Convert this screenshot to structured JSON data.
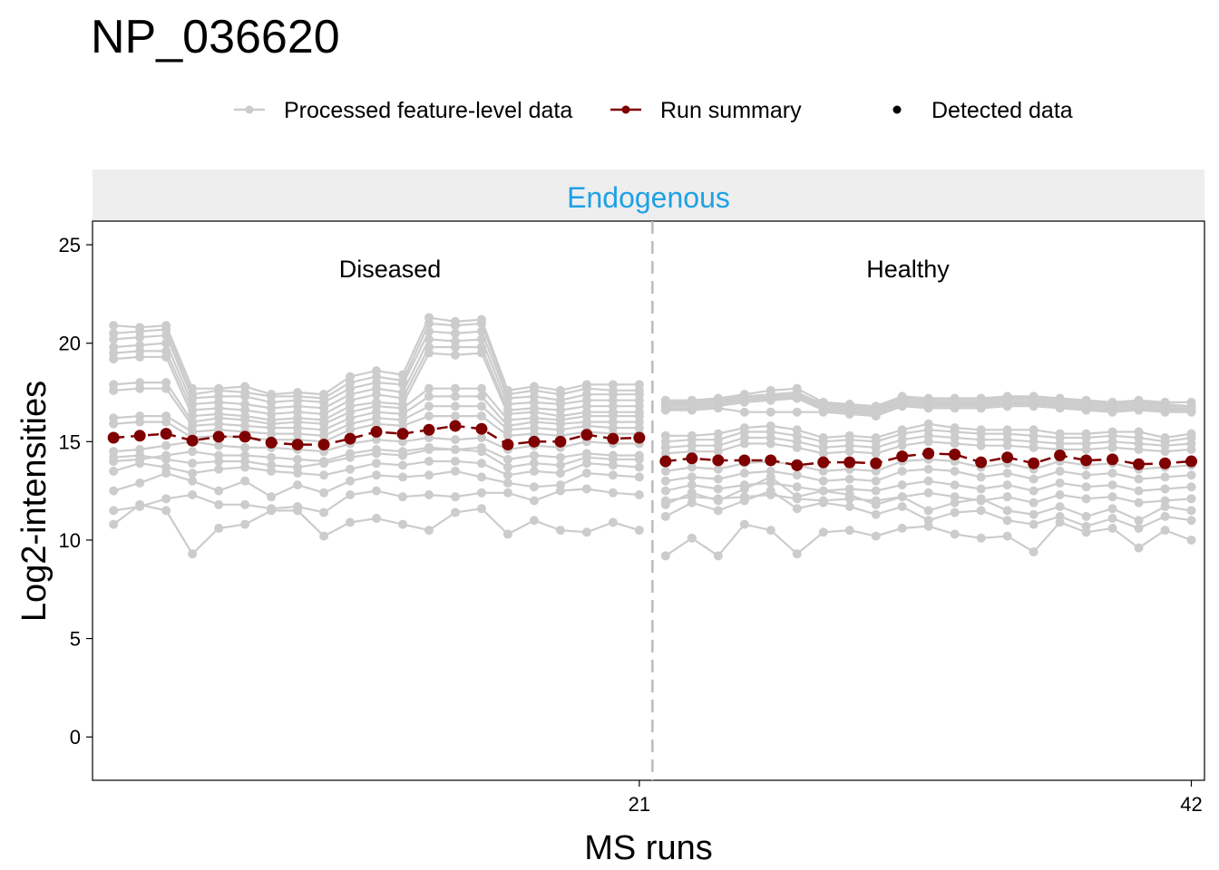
{
  "colors": {
    "feature_line": "#cccccc",
    "run_summary": "#7f0000",
    "strip_bg": "#eeeeee",
    "strip_text": "#1ea1e6",
    "divider": "#bbbbbb"
  },
  "chart_data": {
    "type": "line",
    "title": "NP_036620",
    "xlabel": "MS runs",
    "ylabel": "Log2-intensities",
    "facet_label": "Endogenous",
    "group_labels": [
      "Diseased",
      "Healthy"
    ],
    "xlim": [
      0.2,
      42.5
    ],
    "ylim": [
      -2.2,
      26.2
    ],
    "x_ticks": [
      21,
      42
    ],
    "y_ticks": [
      0,
      5,
      10,
      15,
      20,
      25
    ],
    "group_boundary": 21.5,
    "grid": false,
    "legend_position": "top",
    "legend": [
      {
        "label": "Processed feature-level data",
        "symbol": "line-point"
      },
      {
        "label": "Run summary",
        "symbol": "line-point"
      },
      {
        "label": "Detected data",
        "symbol": "point"
      }
    ],
    "run_summary": {
      "name": "Run summary",
      "x": [
        1,
        2,
        3,
        4,
        5,
        6,
        7,
        8,
        9,
        10,
        11,
        12,
        13,
        14,
        15,
        16,
        17,
        18,
        19,
        20,
        21,
        22,
        23,
        24,
        25,
        26,
        27,
        28,
        29,
        30,
        31,
        32,
        33,
        34,
        35,
        36,
        37,
        38,
        39,
        40,
        41,
        42
      ],
      "y": [
        15.2,
        15.3,
        15.4,
        15.05,
        15.25,
        15.25,
        14.95,
        14.85,
        14.85,
        15.15,
        15.5,
        15.4,
        15.6,
        15.8,
        15.65,
        14.85,
        15.0,
        15.0,
        15.35,
        15.15,
        15.2,
        14.0,
        14.15,
        14.05,
        14.05,
        14.05,
        13.8,
        13.95,
        13.95,
        13.9,
        14.25,
        14.4,
        14.35,
        13.95,
        14.2,
        13.9,
        14.3,
        14.05,
        14.1,
        13.85,
        13.9,
        14.0
      ]
    },
    "feature_series": [
      {
        "values": [
          20.9,
          20.8,
          20.9,
          17.7,
          17.7,
          17.8,
          17.4,
          17.5,
          17.4,
          18.3,
          18.6,
          18.4,
          21.3,
          21.1,
          21.2,
          17.6,
          17.8,
          17.6,
          17.9,
          17.9,
          17.9,
          17.1,
          17.1,
          17.2,
          17.4,
          17.6,
          17.7,
          17.0,
          16.9,
          16.8,
          17.3,
          17.2,
          17.2,
          17.2,
          17.3,
          17.3,
          17.2,
          17.1,
          17.0,
          17.1,
          17.0,
          17.0
        ]
      },
      {
        "values": [
          20.5,
          20.6,
          20.7,
          17.4,
          17.6,
          17.5,
          17.3,
          17.3,
          17.2,
          18.0,
          18.3,
          18.1,
          21.0,
          20.9,
          21.0,
          17.4,
          17.6,
          17.4,
          17.7,
          17.6,
          17.6,
          17.0,
          17.0,
          17.1,
          17.3,
          17.4,
          17.5,
          16.9,
          16.8,
          16.7,
          17.2,
          17.1,
          17.1,
          17.1,
          17.2,
          17.2,
          17.1,
          17.0,
          16.9,
          17.0,
          16.9,
          16.8
        ]
      },
      {
        "values": [
          20.2,
          20.3,
          20.4,
          17.2,
          17.3,
          17.3,
          17.0,
          17.1,
          17.0,
          17.7,
          18.0,
          17.9,
          20.6,
          20.5,
          20.6,
          17.2,
          17.3,
          17.1,
          17.4,
          17.4,
          17.4,
          16.9,
          16.9,
          17.0,
          17.2,
          17.3,
          17.4,
          16.8,
          16.7,
          16.6,
          17.1,
          17.0,
          17.0,
          17.0,
          17.1,
          17.1,
          17.0,
          16.9,
          16.8,
          16.9,
          16.8,
          16.8
        ]
      },
      {
        "values": [
          19.8,
          19.9,
          20.0,
          16.9,
          17.0,
          16.9,
          16.7,
          16.8,
          16.7,
          17.4,
          17.7,
          17.5,
          20.2,
          20.1,
          20.2,
          16.9,
          17.0,
          16.9,
          17.1,
          17.1,
          17.1,
          16.8,
          16.8,
          16.9,
          17.1,
          17.2,
          17.3,
          16.7,
          16.6,
          16.5,
          17.0,
          16.9,
          16.9,
          16.9,
          17.0,
          17.0,
          16.9,
          16.8,
          16.7,
          16.8,
          16.7,
          16.7
        ]
      },
      {
        "values": [
          19.5,
          19.6,
          19.6,
          16.6,
          16.7,
          16.6,
          16.4,
          16.5,
          16.4,
          17.1,
          17.4,
          17.2,
          19.8,
          19.8,
          19.8,
          16.6,
          16.7,
          16.6,
          16.8,
          16.8,
          16.8,
          16.7,
          16.7,
          16.8,
          17.0,
          17.1,
          17.2,
          16.6,
          16.5,
          16.4,
          16.9,
          16.8,
          16.8,
          16.8,
          16.9,
          16.9,
          16.8,
          16.7,
          16.6,
          16.7,
          16.6,
          16.6
        ]
      },
      {
        "values": [
          19.2,
          19.3,
          19.3,
          16.3,
          16.4,
          16.3,
          16.1,
          16.2,
          16.1,
          16.8,
          17.0,
          16.9,
          19.5,
          19.4,
          19.5,
          16.4,
          16.5,
          16.3,
          16.5,
          16.5,
          16.5,
          16.6,
          16.6,
          16.7,
          16.5,
          16.5,
          16.5,
          16.5,
          16.4,
          16.3,
          16.8,
          16.7,
          16.7,
          16.7,
          16.8,
          16.8,
          16.7,
          16.6,
          16.5,
          16.6,
          16.5,
          16.5
        ]
      },
      {
        "values": [
          17.9,
          18.0,
          18.0,
          16.0,
          16.2,
          16.1,
          15.9,
          16.0,
          15.9,
          16.5,
          16.8,
          16.7,
          17.7,
          17.7,
          17.7,
          16.1,
          16.2,
          16.1,
          16.3,
          16.3,
          16.3,
          15.3,
          15.3,
          15.4,
          15.7,
          15.8,
          15.6,
          15.2,
          15.3,
          15.2,
          15.6,
          15.9,
          15.7,
          15.6,
          15.6,
          15.6,
          15.4,
          15.4,
          15.5,
          15.5,
          15.2,
          15.4
        ]
      },
      {
        "values": [
          17.6,
          17.7,
          17.7,
          15.8,
          15.9,
          15.8,
          15.7,
          15.7,
          15.6,
          16.2,
          16.5,
          16.4,
          17.3,
          17.3,
          17.3,
          15.8,
          16.0,
          15.9,
          16.0,
          16.0,
          16.0,
          15.0,
          15.1,
          15.1,
          15.5,
          15.5,
          15.3,
          15.0,
          15.1,
          15.0,
          15.4,
          15.6,
          15.5,
          15.4,
          15.4,
          15.3,
          15.2,
          15.2,
          15.3,
          15.2,
          15.0,
          15.2
        ]
      },
      {
        "values": [
          16.2,
          16.3,
          16.3,
          15.5,
          15.6,
          15.5,
          15.4,
          15.4,
          15.3,
          15.9,
          16.2,
          16.1,
          16.8,
          16.8,
          16.8,
          15.6,
          15.7,
          15.6,
          15.8,
          15.7,
          15.7,
          14.7,
          14.8,
          14.8,
          15.2,
          15.2,
          15.0,
          14.7,
          14.8,
          14.7,
          15.1,
          15.3,
          15.2,
          15.1,
          15.1,
          15.0,
          14.9,
          14.9,
          15.0,
          14.9,
          14.8,
          14.9
        ]
      },
      {
        "values": [
          15.9,
          16.0,
          16.0,
          15.2,
          15.3,
          15.2,
          15.1,
          15.1,
          15.0,
          15.6,
          15.9,
          15.8,
          16.3,
          16.3,
          16.3,
          15.3,
          15.4,
          15.3,
          15.5,
          15.4,
          15.4,
          14.4,
          14.5,
          14.5,
          14.9,
          14.9,
          14.7,
          14.4,
          14.5,
          14.4,
          14.8,
          15.0,
          14.9,
          14.8,
          14.8,
          14.7,
          14.6,
          14.6,
          14.7,
          14.6,
          14.5,
          14.6
        ]
      },
      {
        "values": [
          14.2,
          14.3,
          14.1,
          13.9,
          14.0,
          14.0,
          13.8,
          13.7,
          13.9,
          14.2,
          14.4,
          14.3,
          14.6,
          14.6,
          14.5,
          13.7,
          13.9,
          13.8,
          14.2,
          14.1,
          14.1,
          13.5,
          13.7,
          13.6,
          13.9,
          14.0,
          13.8,
          13.5,
          13.6,
          13.5,
          14.0,
          14.1,
          14.0,
          13.7,
          13.9,
          13.6,
          14.0,
          13.8,
          13.9,
          13.6,
          13.7,
          13.8
        ]
      },
      {
        "values": [
          13.5,
          13.9,
          13.7,
          13.4,
          13.6,
          13.7,
          13.5,
          13.4,
          13.3,
          13.6,
          13.9,
          13.8,
          14.0,
          14.0,
          13.9,
          13.3,
          13.5,
          13.4,
          13.9,
          13.8,
          13.7,
          13.0,
          13.2,
          13.1,
          13.4,
          13.5,
          13.3,
          13.0,
          13.1,
          13.0,
          13.5,
          13.6,
          13.5,
          13.2,
          13.4,
          13.1,
          13.5,
          13.3,
          13.4,
          13.1,
          13.2,
          13.3
        ]
      },
      {
        "values": [
          12.5,
          12.9,
          13.4,
          13.0,
          12.5,
          13.0,
          12.2,
          12.8,
          12.4,
          13.0,
          13.3,
          13.2,
          13.3,
          13.5,
          13.2,
          12.9,
          12.7,
          12.8,
          13.4,
          13.3,
          13.2,
          12.5,
          12.8,
          12.6,
          12.8,
          12.9,
          12.7,
          12.5,
          12.6,
          12.5,
          12.8,
          13.0,
          12.8,
          12.6,
          12.8,
          12.5,
          12.9,
          12.7,
          12.8,
          12.5,
          12.6,
          12.7
        ]
      },
      {
        "values": [
          11.5,
          11.7,
          12.1,
          12.3,
          11.8,
          11.8,
          11.6,
          11.7,
          11.4,
          12.3,
          12.5,
          12.2,
          12.3,
          12.2,
          12.4,
          12.4,
          12.0,
          12.5,
          12.6,
          12.4,
          12.3,
          12.0,
          12.2,
          12.1,
          12.2,
          12.3,
          12.1,
          12.0,
          12.1,
          12.0,
          12.2,
          12.4,
          12.2,
          12.0,
          12.2,
          11.9,
          12.3,
          12.1,
          12.2,
          11.9,
          12.0,
          12.1
        ]
      },
      {
        "values": [
          10.8,
          11.8,
          11.5,
          9.3,
          10.6,
          10.8,
          11.5,
          11.5,
          10.2,
          10.9,
          11.1,
          10.8,
          10.5,
          11.4,
          11.6,
          10.3,
          11.0,
          10.5,
          10.4,
          10.9,
          10.5,
          9.2,
          10.1,
          9.2,
          10.8,
          10.5,
          9.3,
          10.4,
          10.5,
          10.2,
          10.6,
          10.7,
          10.3,
          10.1,
          10.2,
          9.4,
          10.9,
          10.4,
          10.6,
          9.6,
          10.5,
          10.0
        ]
      },
      {
        "values": [
          14.5,
          14.6,
          14.8,
          15.0,
          14.8,
          14.7,
          14.7,
          14.6,
          14.5,
          14.9,
          15.1,
          15.0,
          15.2,
          15.1,
          15.2,
          14.6,
          14.8,
          14.7,
          15.0,
          14.9,
          14.9,
          11.8,
          12.4,
          12.0,
          12.6,
          13.2,
          12.2,
          12.5,
          12.3,
          11.8,
          12.2,
          11.5,
          11.9,
          12.1,
          11.5,
          11.3,
          11.7,
          11.2,
          11.6,
          11.0,
          11.7,
          11.5
        ]
      },
      {
        "values": [
          14.0,
          14.1,
          14.3,
          14.5,
          14.3,
          14.3,
          14.2,
          14.1,
          14.0,
          14.4,
          14.6,
          14.5,
          14.7,
          14.6,
          14.7,
          14.1,
          14.3,
          14.2,
          14.4,
          14.3,
          14.3,
          11.2,
          11.9,
          11.5,
          12.0,
          12.5,
          11.6,
          11.9,
          11.7,
          11.3,
          11.7,
          11.0,
          11.4,
          11.5,
          11.0,
          10.8,
          11.2,
          10.7,
          11.1,
          10.6,
          11.2,
          11.0
        ]
      }
    ]
  }
}
